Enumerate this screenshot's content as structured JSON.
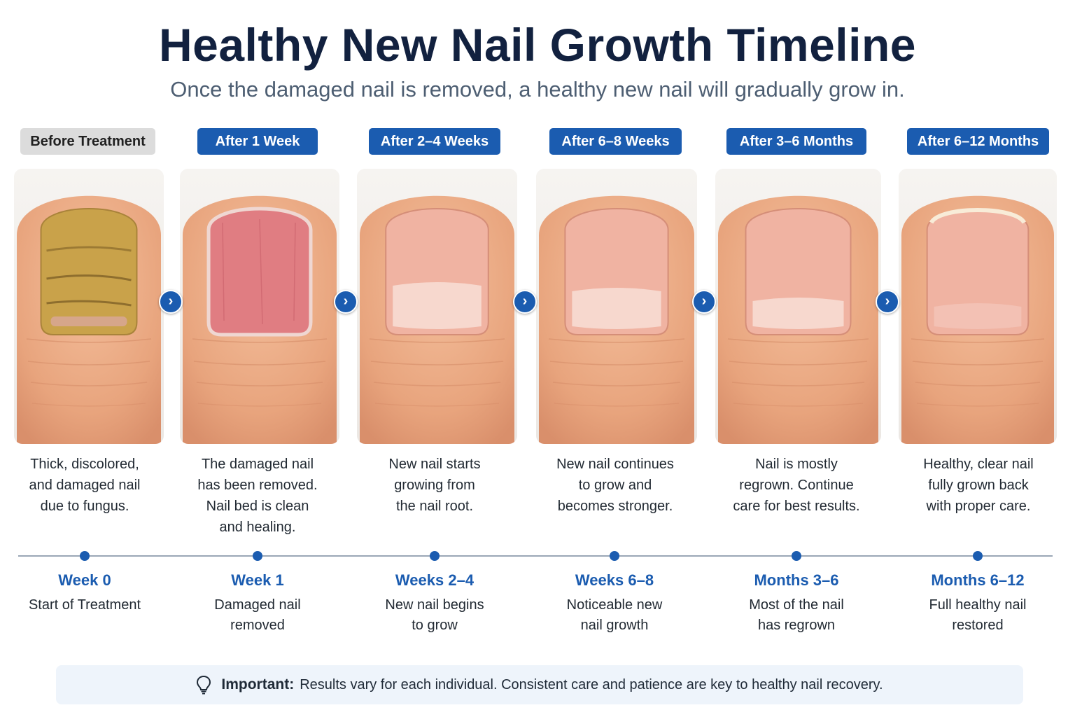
{
  "header": {
    "title": "Healthy New Nail Growth Timeline",
    "subtitle": "Once the damaged nail is removed, a healthy new nail will gradually grow in."
  },
  "stages": [
    {
      "badge": "Before Treatment",
      "description_lines": [
        "Thick, discolored,",
        "and damaged nail",
        "due to fungus."
      ],
      "timeline_label": "Week 0",
      "timeline_sub_lines": [
        "Start of Treatment"
      ],
      "nail_state": "thick yellow fungal nail"
    },
    {
      "badge": "After 1 Week",
      "description_lines": [
        "The damaged nail",
        "has been removed.",
        "Nail bed is clean",
        "and healing."
      ],
      "timeline_label": "Week 1",
      "timeline_sub_lines": [
        "Damaged nail",
        "removed"
      ],
      "nail_state": "exposed pink nail bed"
    },
    {
      "badge": "After 2–4 Weeks",
      "description_lines": [
        "New nail starts",
        "growing from",
        "the nail root."
      ],
      "timeline_label": "Weeks 2–4",
      "timeline_sub_lines": [
        "New nail begins",
        "to grow"
      ],
      "nail_state": "new nail emerging at root"
    },
    {
      "badge": "After 6–8 Weeks",
      "description_lines": [
        "New nail continues",
        "to grow and",
        "becomes stronger."
      ],
      "timeline_label": "Weeks 6–8",
      "timeline_sub_lines": [
        "Noticeable new",
        "nail growth"
      ],
      "nail_state": "new nail half grown"
    },
    {
      "badge": "After 3–6 Months",
      "description_lines": [
        "Nail is mostly",
        "regrown. Continue",
        "care for best results."
      ],
      "timeline_label": "Months 3–6",
      "timeline_sub_lines": [
        "Most of the nail",
        "has regrown"
      ],
      "nail_state": "nail mostly regrown"
    },
    {
      "badge": "After 6–12 Months",
      "description_lines": [
        "Healthy, clear nail",
        "fully grown back",
        "with proper care."
      ],
      "timeline_label": "Months 6–12",
      "timeline_sub_lines": [
        "Full healthy nail",
        "restored"
      ],
      "nail_state": "full healthy nail"
    }
  ],
  "note": {
    "icon": "lightbulb-icon",
    "label": "Important:",
    "text": "Results vary for each individual. Consistent care and patience are key to healthy nail recovery."
  },
  "colors": {
    "accent": "#1b5cb0",
    "title": "#12213f",
    "badge_neutral": "#dcdcdc",
    "note_background": "#eef4fb"
  }
}
